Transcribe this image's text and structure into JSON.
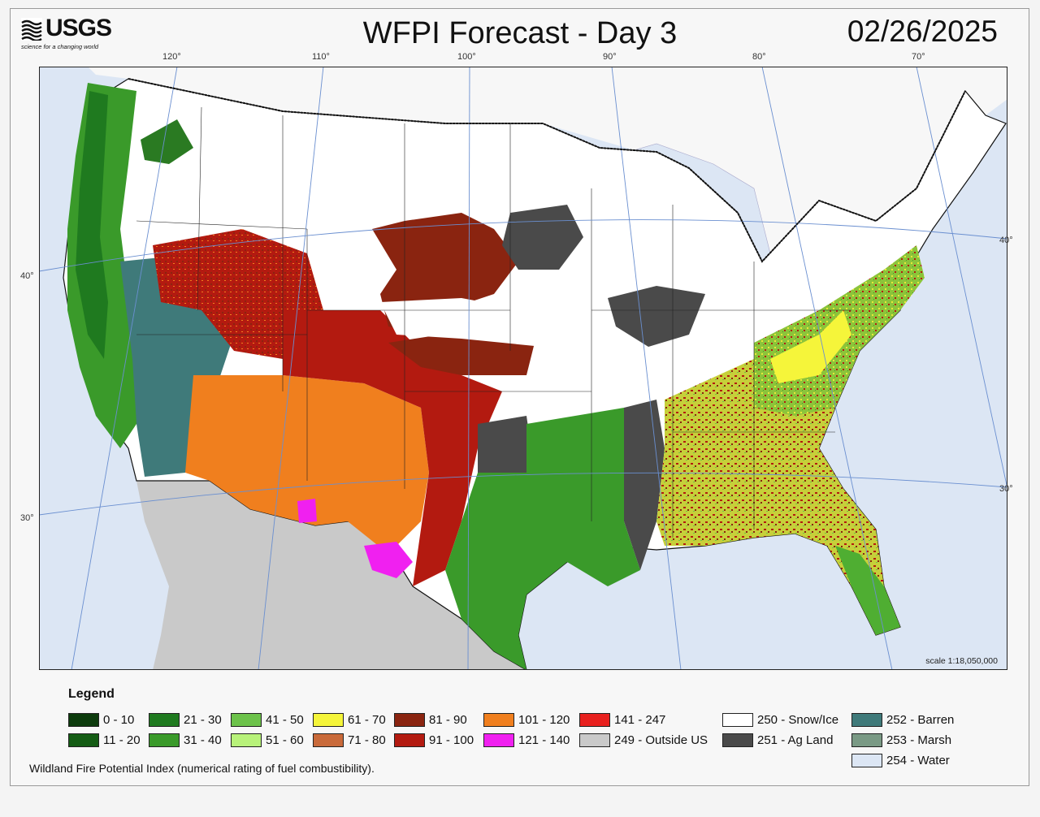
{
  "logo": {
    "text": "USGS",
    "tagline": "science for a changing world"
  },
  "title": "WFPI Forecast - Day 3",
  "date": "02/26/2025",
  "map": {
    "longitude_labels": [
      "120°",
      "110°",
      "100°",
      "90°",
      "80°",
      "70°"
    ],
    "latitude_labels": [
      "40°",
      "30°",
      "40°",
      "30°"
    ],
    "scale_text": "scale 1:18,050,000",
    "colors": {
      "water": "#dce6f4",
      "outside_us": "#c9c9c9",
      "snow_ice": "#ffffff",
      "grid": "#6a8fd0",
      "border": "#111111"
    }
  },
  "legend": {
    "title": "Legend",
    "items": [
      {
        "label": "0 - 10",
        "color": "#0d3b0d"
      },
      {
        "label": "11 - 20",
        "color": "#145c14"
      },
      {
        "label": "21 - 30",
        "color": "#1f7a1f"
      },
      {
        "label": "31 - 40",
        "color": "#3a9a2a"
      },
      {
        "label": "41 - 50",
        "color": "#6cc24a"
      },
      {
        "label": "51 - 60",
        "color": "#b8f27a"
      },
      {
        "label": "61 - 70",
        "color": "#f5f53a"
      },
      {
        "label": "71 - 80",
        "color": "#c96a3a"
      },
      {
        "label": "81 - 90",
        "color": "#8a2410"
      },
      {
        "label": "91 - 100",
        "color": "#b31a10"
      },
      {
        "label": "101 - 120",
        "color": "#f07f1e"
      },
      {
        "label": "121 - 140",
        "color": "#f020f0"
      },
      {
        "label": "141 - 247",
        "color": "#e8201e"
      },
      {
        "label": "249 - Outside US",
        "color": "#c9c9c9"
      },
      {
        "label": "250 - Snow/Ice",
        "color": "#ffffff"
      },
      {
        "label": "251 - Ag Land",
        "color": "#4a4a4a"
      },
      {
        "label": "252 - Barren",
        "color": "#3f7a7a"
      },
      {
        "label": "253 - Marsh",
        "color": "#7a9a85"
      },
      {
        "label": "254 - Water",
        "color": "#dce6f4"
      }
    ]
  },
  "footnote": "Wildland Fire Potential Index (numerical rating of fuel combustibility)."
}
